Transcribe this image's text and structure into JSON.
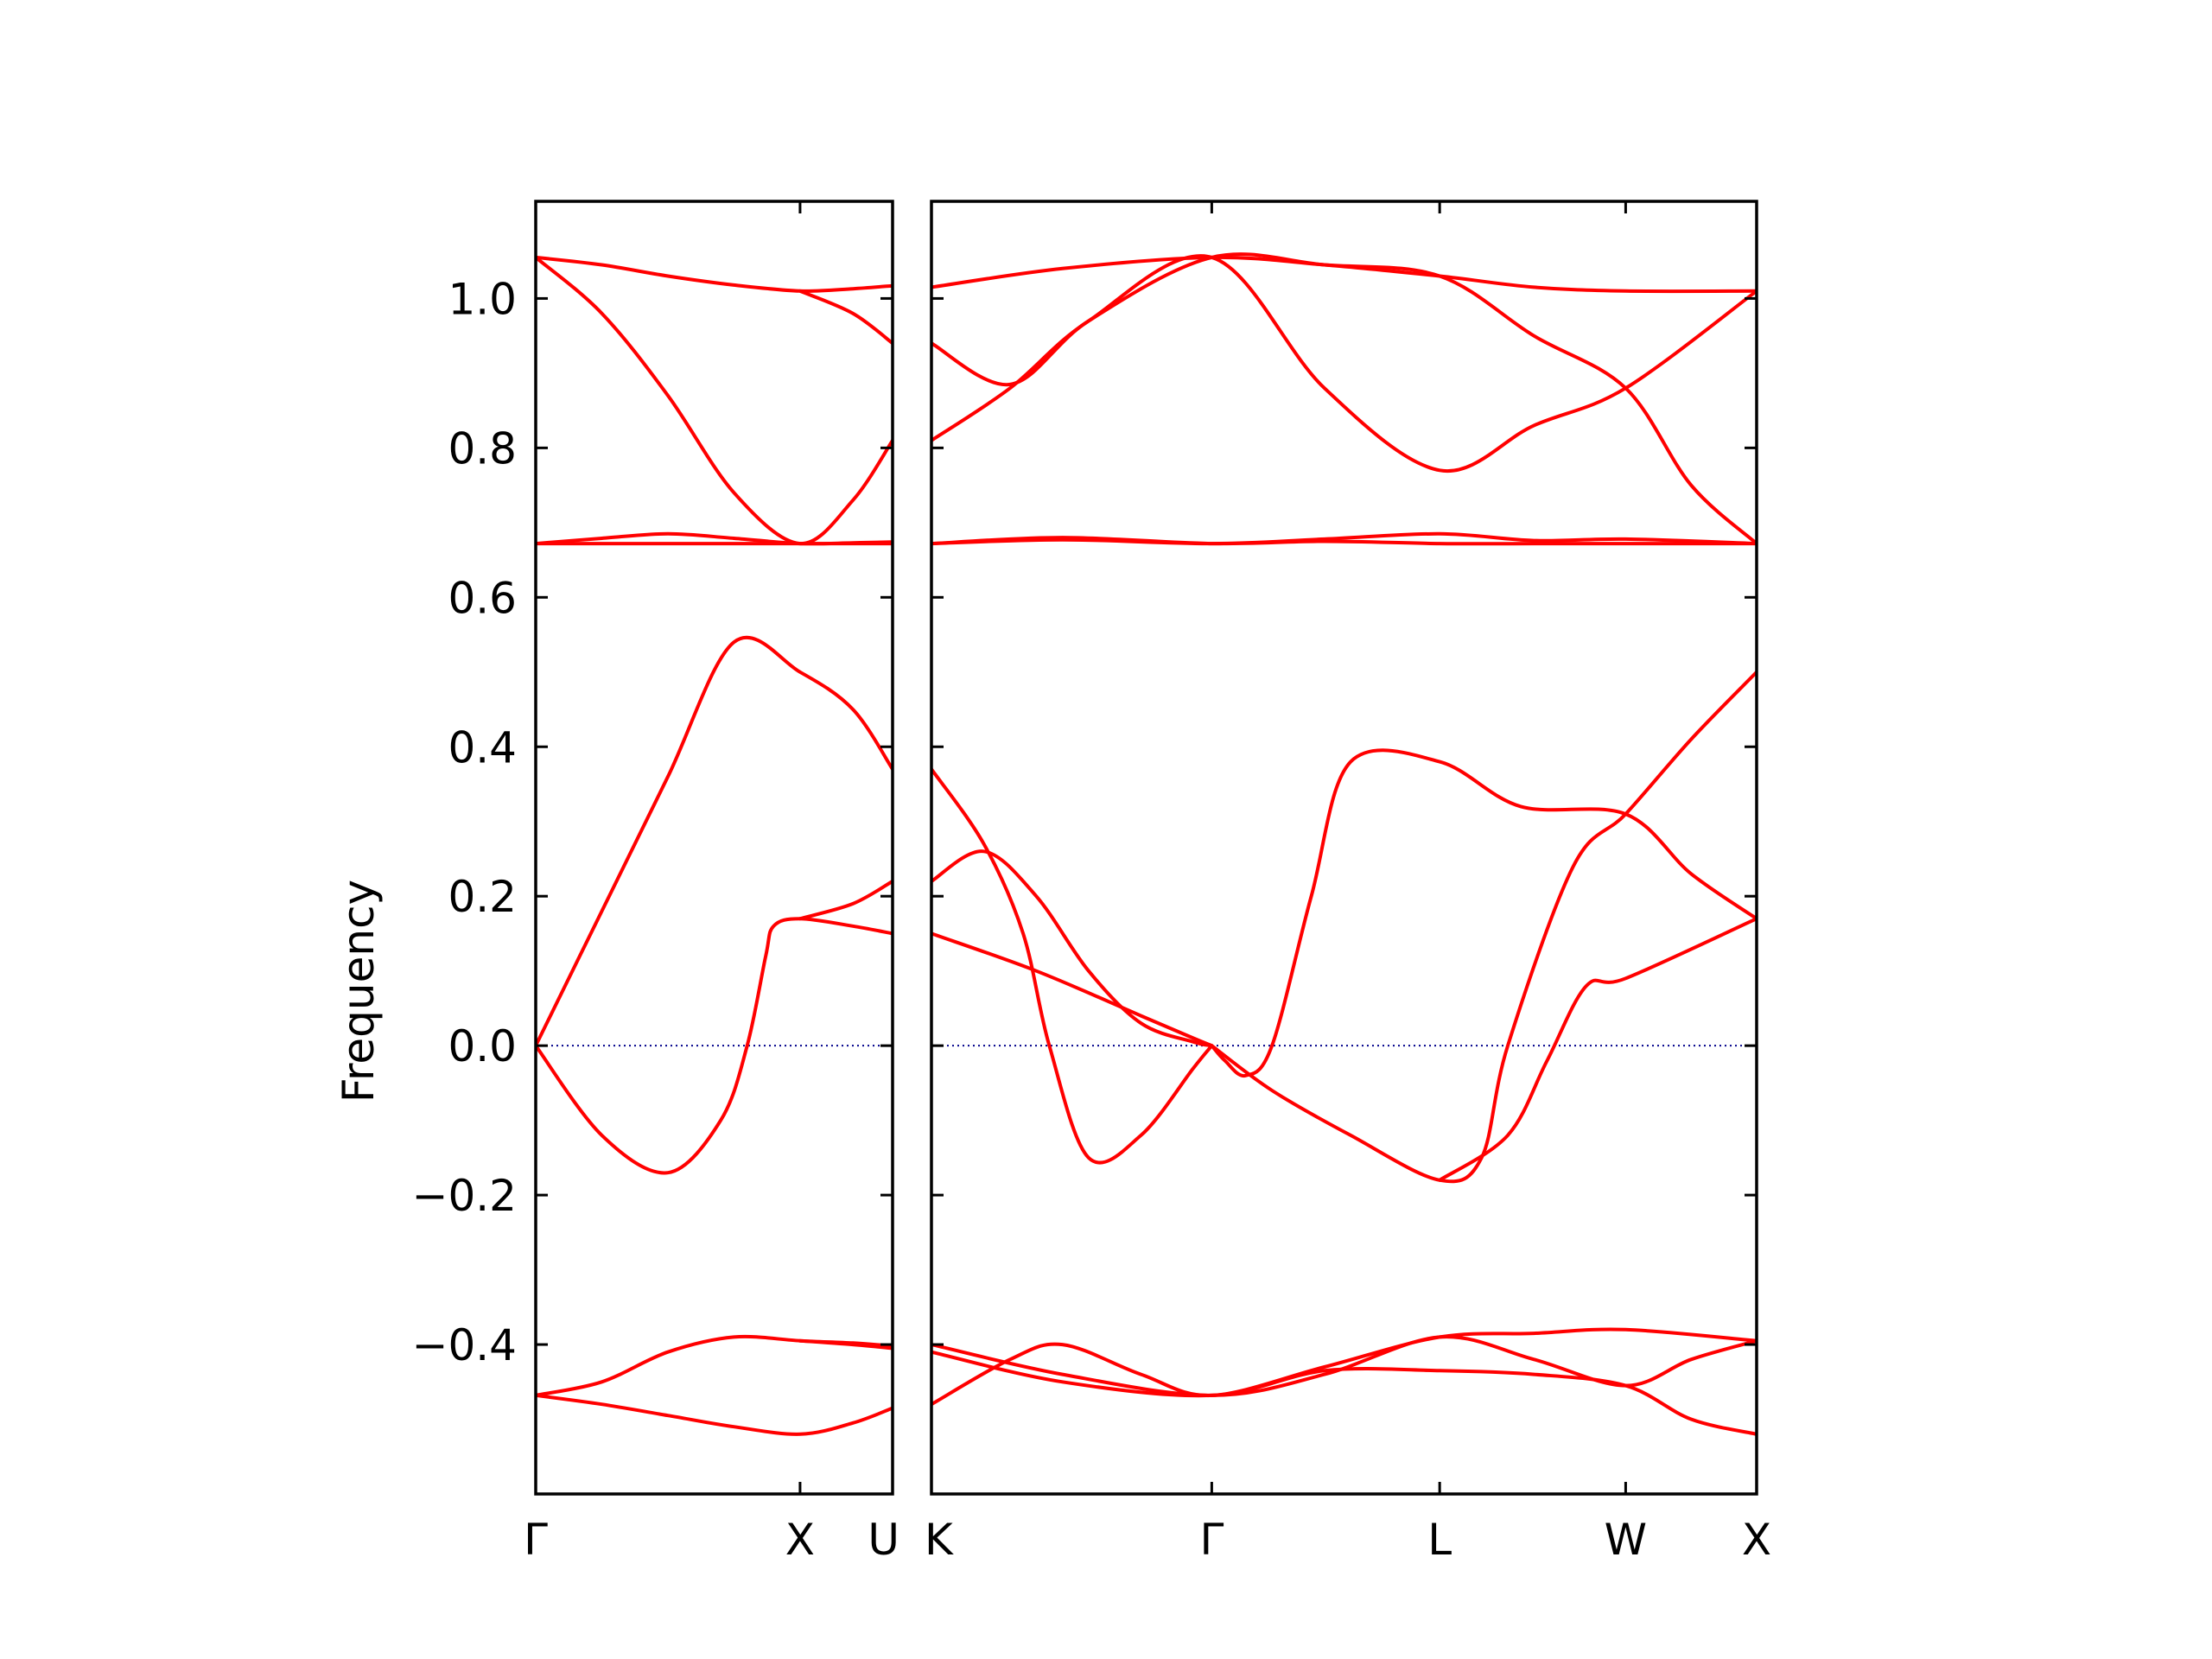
{
  "chart_data": {
    "type": "line",
    "ylabel": "Frequency",
    "ylim": [
      -0.6,
      1.13
    ],
    "yticks": [
      {
        "value": 1.0,
        "label": "1.0"
      },
      {
        "value": 0.8,
        "label": "0.8"
      },
      {
        "value": 0.6,
        "label": "0.6"
      },
      {
        "value": 0.4,
        "label": "0.4"
      },
      {
        "value": 0.2,
        "label": "0.2"
      },
      {
        "value": 0.0,
        "label": "0.0"
      },
      {
        "value": -0.2,
        "label": "−0.2"
      },
      {
        "value": -0.4,
        "label": "−0.4"
      }
    ],
    "colors": {
      "bands": "#ff0000",
      "zero_line": "#00008b",
      "axes": "#000000"
    },
    "panels": [
      {
        "xlim": [
          0,
          1.35
        ],
        "xticks": [
          {
            "value": 0,
            "label": "Γ"
          },
          {
            "value": 1.0,
            "label": "X"
          },
          {
            "value": 1.35,
            "label": "U"
          }
        ],
        "bands": [
          {
            "x": [
              0,
              0.25,
              0.5,
              0.7,
              0.8,
              0.87,
              0.9,
              1.0,
              1.2,
              1.35
            ],
            "y": [
              0,
              -0.12,
              -0.17,
              -0.1,
              0.0,
              0.12,
              0.16,
              0.17,
              0.16,
              0.15
            ]
          },
          {
            "x": [
              0,
              0.25,
              0.5,
              0.75,
              1.0,
              1.2,
              1.35
            ],
            "y": [
              0,
              0.18,
              0.36,
              0.54,
              0.5,
              0.45,
              0.37
            ]
          },
          {
            "x": [
              1.0,
              1.2,
              1.35
            ],
            "y": [
              0.17,
              0.19,
              0.22
            ]
          },
          {
            "x": [
              0,
              0.25,
              0.5,
              0.75,
              1.0,
              1.2,
              1.35
            ],
            "y": [
              0.672,
              0.679,
              0.685,
              0.679,
              0.672,
              0.673,
              0.674
            ]
          },
          {
            "x": [
              0,
              0.25,
              0.5,
              0.75,
              1.0,
              1.35
            ],
            "y": [
              0.672,
              0.672,
              0.672,
              0.672,
              0.672,
              0.672
            ]
          },
          {
            "x": [
              0,
              0.25,
              0.5,
              0.75,
              1.0,
              1.2,
              1.35
            ],
            "y": [
              1.055,
              0.98,
              0.87,
              0.74,
              0.672,
              0.73,
              0.81
            ]
          },
          {
            "x": [
              0,
              0.25,
              0.5,
              0.75,
              1.0,
              1.2,
              1.35
            ],
            "y": [
              1.055,
              1.045,
              1.03,
              1.018,
              1.01,
              1.013,
              1.017
            ]
          },
          {
            "x": [
              1.0,
              1.2,
              1.35
            ],
            "y": [
              1.01,
              0.98,
              0.94
            ]
          },
          {
            "x": [
              0,
              0.25,
              0.5,
              0.75,
              1.0,
              1.2,
              1.35
            ],
            "y": [
              -0.468,
              -0.45,
              -0.41,
              -0.39,
              -0.395,
              -0.398,
              -0.402
            ]
          },
          {
            "x": [
              0,
              0.25,
              0.5,
              0.75,
              1.0,
              1.2,
              1.35
            ],
            "y": [
              -0.468,
              -0.48,
              -0.495,
              -0.51,
              -0.52,
              -0.505,
              -0.485
            ]
          },
          {
            "x": [
              1.0,
              1.2,
              1.35
            ],
            "y": [
              -0.395,
              -0.4,
              -0.405
            ]
          }
        ]
      },
      {
        "xlim": [
          0,
          3.15
        ],
        "xticks": [
          {
            "value": 0,
            "label": "K"
          },
          {
            "value": 1.07,
            "label": "Γ"
          },
          {
            "value": 1.94,
            "label": "L"
          },
          {
            "value": 2.65,
            "label": "W"
          },
          {
            "value": 3.15,
            "label": "X"
          }
        ],
        "bands": [
          {
            "x": [
              0,
              0.2,
              0.35,
              0.45,
              0.6,
              0.8,
              1.0,
              1.07
            ],
            "y": [
              0.37,
              0.27,
              0.15,
              0.0,
              -0.15,
              -0.12,
              -0.03,
              0.0
            ]
          },
          {
            "x": [
              0,
              0.2,
              0.4,
              0.6,
              0.8,
              1.0,
              1.07
            ],
            "y": [
              0.22,
              0.26,
              0.2,
              0.1,
              0.03,
              0.005,
              0.0
            ]
          },
          {
            "x": [
              0,
              0.4,
              0.8,
              1.0,
              1.07
            ],
            "y": [
              0.15,
              0.1,
              0.04,
              0.01,
              0.0
            ]
          },
          {
            "x": [
              1.07,
              1.12,
              1.2,
              1.3,
              1.45,
              1.6,
              1.94,
              2.25,
              2.65,
              2.9,
              3.15
            ],
            "y": [
              0.0,
              -0.02,
              -0.04,
              0.0,
              0.2,
              0.38,
              0.38,
              0.32,
              0.31,
              0.23,
              0.17
            ]
          },
          {
            "x": [
              1.07,
              1.3,
              1.6,
              1.94,
              2.1,
              2.2,
              2.45,
              2.65,
              2.9,
              3.15
            ],
            "y": [
              0.0,
              -0.06,
              -0.12,
              -0.18,
              -0.15,
              0.0,
              0.24,
              0.31,
              0.41,
              0.5
            ]
          },
          {
            "x": [
              1.94,
              2.2,
              2.35,
              2.5,
              2.65,
              3.15
            ],
            "y": [
              -0.18,
              -0.12,
              -0.02,
              0.08,
              0.09,
              0.17
            ]
          },
          {
            "x": [
              0,
              0.5,
              1.07,
              1.5,
              1.94,
              2.3,
              2.65,
              3.15
            ],
            "y": [
              0.672,
              0.677,
              0.672,
              0.678,
              0.685,
              0.676,
              0.678,
              0.672
            ]
          },
          {
            "x": [
              0,
              0.5,
              1.07,
              1.5,
              1.94,
              2.3,
              2.65,
              3.15
            ],
            "y": [
              0.672,
              0.68,
              0.672,
              0.675,
              0.672,
              0.672,
              0.672,
              0.672
            ]
          },
          {
            "x": [
              0,
              0.3,
              0.6,
              1.07,
              1.5,
              1.94,
              2.3,
              2.65,
              3.15
            ],
            "y": [
              0.81,
              0.88,
              0.97,
              1.055,
              0.88,
              0.77,
              0.83,
              0.88,
              1.01
            ]
          },
          {
            "x": [
              0,
              0.3,
              0.6,
              1.07,
              1.5,
              1.94,
              2.3,
              2.65,
              2.9,
              3.15
            ],
            "y": [
              0.94,
              0.885,
              0.97,
              1.055,
              1.045,
              1.03,
              0.95,
              0.88,
              0.75,
              0.672
            ]
          },
          {
            "x": [
              0,
              0.5,
              1.07,
              1.5,
              1.94,
              2.3,
              2.65,
              3.15
            ],
            "y": [
              1.015,
              1.04,
              1.055,
              1.045,
              1.03,
              1.015,
              1.01,
              1.01
            ]
          },
          {
            "x": [
              0,
              0.3,
              0.5,
              0.8,
              1.07,
              1.5,
              1.94,
              2.3,
              2.65,
              3.15
            ],
            "y": [
              -0.48,
              -0.42,
              -0.4,
              -0.44,
              -0.468,
              -0.43,
              -0.39,
              -0.385,
              -0.38,
              -0.395
            ]
          },
          {
            "x": [
              0,
              0.5,
              1.07,
              1.5,
              1.94,
              2.3,
              2.65,
              2.9,
              3.15
            ],
            "y": [
              -0.4,
              -0.44,
              -0.468,
              -0.44,
              -0.39,
              -0.42,
              -0.455,
              -0.42,
              -0.395
            ]
          },
          {
            "x": [
              0,
              0.5,
              1.07,
              1.5,
              1.94,
              2.3,
              2.65,
              2.9,
              3.15
            ],
            "y": [
              -0.41,
              -0.45,
              -0.468,
              -0.435,
              -0.435,
              -0.44,
              -0.455,
              -0.5,
              -0.52
            ]
          }
        ]
      }
    ]
  }
}
